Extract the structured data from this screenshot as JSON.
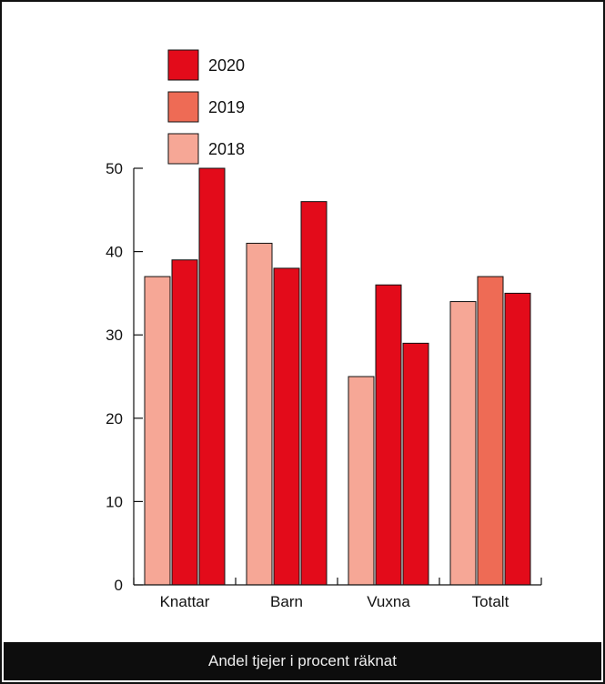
{
  "chart_data": {
    "type": "bar",
    "categories": [
      "Knattar",
      "Barn",
      "Vuxna",
      "Totalt"
    ],
    "series": [
      {
        "name": "2018",
        "color": "#f6a796",
        "values": [
          37,
          41,
          25,
          34
        ]
      },
      {
        "name": "2019",
        "color": "#ee6b55",
        "values": [
          null,
          null,
          null,
          37
        ]
      },
      {
        "name": "2020",
        "color": "#e30b1a",
        "values": [
          39,
          38,
          36,
          35
        ]
      },
      {
        "name": "",
        "color": "#e30b1a",
        "values": [
          50,
          46,
          29,
          null
        ]
      }
    ],
    "legend": [
      {
        "label": "2020",
        "color": "#e30b1a"
      },
      {
        "label": "2019",
        "color": "#ee6b55"
      },
      {
        "label": "2018",
        "color": "#f6a796"
      }
    ],
    "legend_position": "top-left",
    "yticks": [
      0,
      10,
      20,
      30,
      40,
      50
    ],
    "ylim": [
      0,
      50
    ],
    "grid": false,
    "caption": "Andel tjejer i procent räknat"
  }
}
